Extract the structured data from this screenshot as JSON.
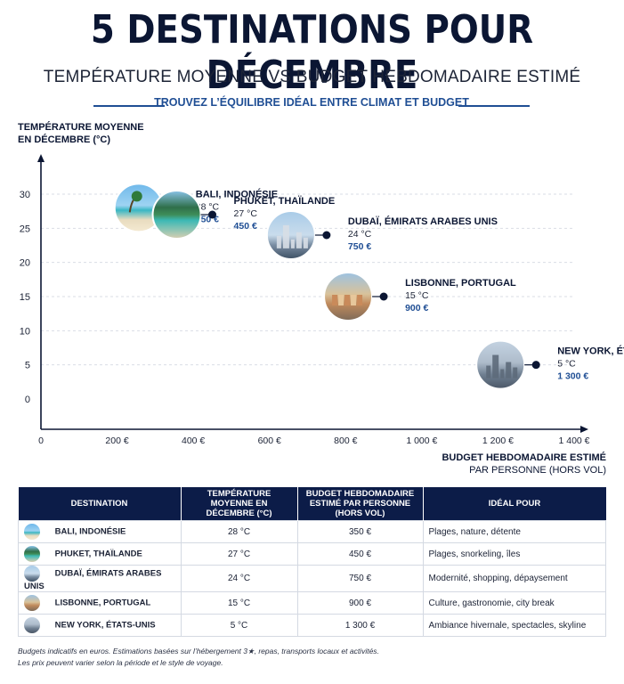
{
  "header": {
    "title": "5 DESTINATIONS POUR DÉCEMBRE",
    "subtitle": "TEMPÉRATURE MOYENNE VS BUDGET HEBDOMADAIRE ESTIMÉ",
    "tagline": "TROUVEZ L’ÉQUILIBRE IDÉAL ENTRE CLIMAT ET BUDGET"
  },
  "chart_data": {
    "type": "scatter",
    "ylabel_lines": [
      "TEMPÉRATURE MOYENNE",
      "EN DÉCEMBRE (°C)"
    ],
    "xlabel_lines": [
      "BUDGET HEBDOMADAIRE ESTIMÉ",
      "PAR PERSONNE (HORS VOL)"
    ],
    "xlim": [
      0,
      1400
    ],
    "ylim": [
      0,
      30
    ],
    "x_ticks": [
      0,
      200,
      400,
      600,
      800,
      1000,
      1200,
      1400
    ],
    "x_tick_labels": [
      "0",
      "200 €",
      "400 €",
      "600 €",
      "800 €",
      "1 000 €",
      "1 200 €",
      "1 400 €"
    ],
    "y_ticks": [
      0,
      5,
      10,
      15,
      20,
      25,
      30
    ],
    "y_tick_labels": [
      "0",
      "5",
      "10",
      "15",
      "20",
      "25",
      "30"
    ],
    "grid": true,
    "points": [
      {
        "name": "BALI, INDONÉSIE",
        "x": 350,
        "y": 28,
        "temp_label": "28 °C",
        "budget_label": "350 €",
        "scene": "beach"
      },
      {
        "name": "PHUKET, THAÏLANDE",
        "x": 450,
        "y": 27,
        "temp_label": "27 °C",
        "budget_label": "450 €",
        "scene": "bay"
      },
      {
        "name": "DUBAÏ, ÉMIRATS ARABES UNIS",
        "x": 750,
        "y": 24,
        "temp_label": "24 °C",
        "budget_label": "750 €",
        "scene": "skyline"
      },
      {
        "name": "LISBONNE, PORTUGAL",
        "x": 900,
        "y": 15,
        "temp_label": "15 °C",
        "budget_label": "900 €",
        "scene": "old-town"
      },
      {
        "name": "NEW YORK, ÉTATS-UNIS",
        "x": 1300,
        "y": 5,
        "temp_label": "5 °C",
        "budget_label": "1 300 €",
        "scene": "towers"
      }
    ]
  },
  "table": {
    "headers": [
      "DESTINATION",
      "TEMPÉRATURE MOYENNE EN DÉCEMBRE (°C)",
      "BUDGET HEBDOMADAIRE ESTIMÉ PAR PERSONNE (HORS VOL)",
      "IDÉAL POUR"
    ],
    "rows": [
      {
        "destination": "BALI, INDONÉSIE",
        "temperature": "28 °C",
        "budget": "350 €",
        "ideal": "Plages, nature, détente"
      },
      {
        "destination": "PHUKET, THAÏLANDE",
        "temperature": "27 °C",
        "budget": "450 €",
        "ideal": "Plages, snorkeling, îles"
      },
      {
        "destination": "DUBAÏ, ÉMIRATS ARABES UNIS",
        "temperature": "24 °C",
        "budget": "750 €",
        "ideal": "Modernité, shopping, dépaysement"
      },
      {
        "destination": "LISBONNE, PORTUGAL",
        "temperature": "15 °C",
        "budget": "900 €",
        "ideal": "Culture, gastronomie, city break"
      },
      {
        "destination": "NEW YORK, ÉTATS-UNIS",
        "temperature": "5 °C",
        "budget": "1 300 €",
        "ideal": "Ambiance hivernale, spectacles, skyline"
      }
    ]
  },
  "footnote": {
    "line1": "Budgets indicatifs en euros. Estimations basées sur l’hébergement 3★, repas, transports locaux et activités.",
    "line2": "Les prix peuvent varier selon la période et le style de voyage."
  },
  "colors": {
    "navy": "#0c1c48",
    "accent_blue": "#1f4e94",
    "grid": "#d9dde5"
  }
}
